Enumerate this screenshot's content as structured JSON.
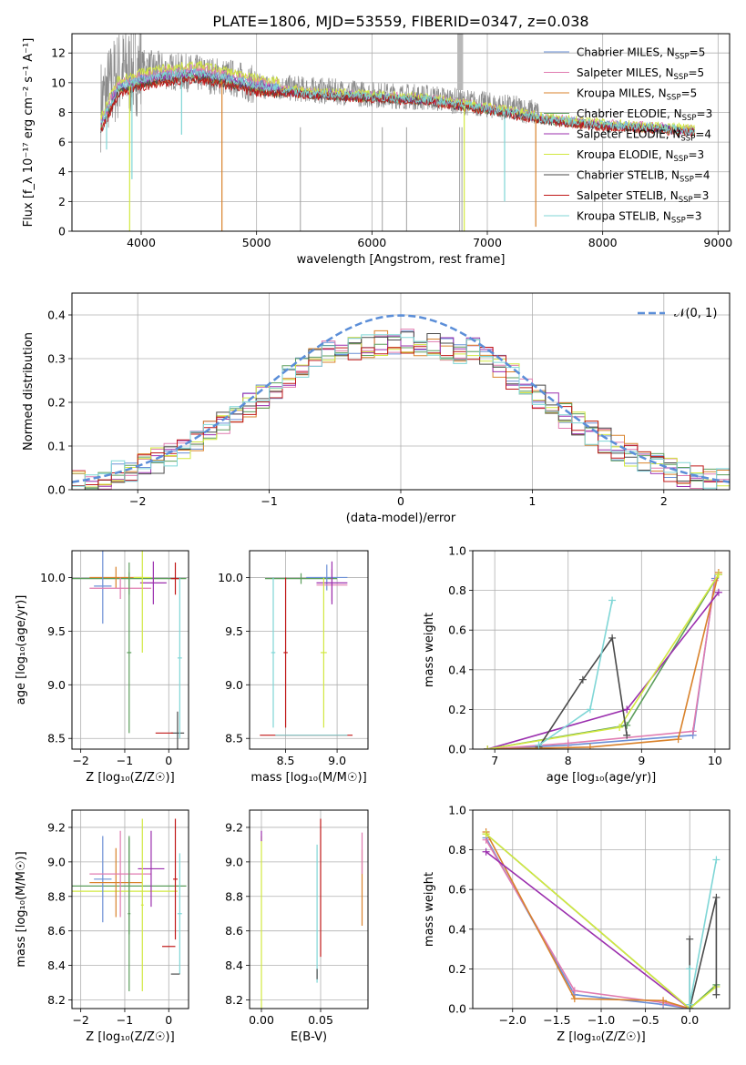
{
  "title": "PLATE=1806, MJD=53559, FIBERID=0347, z=0.038",
  "series": [
    {
      "name": "Chabrier MILES",
      "nssp": "5",
      "color": "#6a8fd6"
    },
    {
      "name": "Salpeter MILES",
      "nssp": "5",
      "color": "#e07bb0"
    },
    {
      "name": "Kroupa MILES",
      "nssp": "5",
      "color": "#d9822b"
    },
    {
      "name": "Chabrier ELODIE",
      "nssp": "3",
      "color": "#5c9e5c"
    },
    {
      "name": "Salpeter ELODIE",
      "nssp": "4",
      "color": "#9b2fae"
    },
    {
      "name": "Kroupa ELODIE",
      "nssp": "3",
      "color": "#d2e840"
    },
    {
      "name": "Chabrier STELIB",
      "nssp": "4",
      "color": "#4a4a4a"
    },
    {
      "name": "Salpeter STELIB",
      "nssp": "3",
      "color": "#c01818"
    },
    {
      "name": "Kroupa STELIB",
      "nssp": "3",
      "color": "#7fd6d6"
    }
  ],
  "chart_data": [
    {
      "id": "spectrum",
      "type": "line",
      "xlabel": "wavelength [Angstrom, rest frame]",
      "ylabel": "Flux [f_λ 10⁻¹⁷ erg cm⁻² s⁻¹ A⁻¹]",
      "xlim": [
        3400,
        9100
      ],
      "ylim": [
        0,
        13.3
      ],
      "xticks": [
        4000,
        5000,
        6000,
        7000,
        8000,
        9000
      ],
      "yticks": [
        0,
        2,
        4,
        6,
        8,
        10,
        12
      ],
      "data_curve": {
        "x": [
          3650,
          3800,
          4000,
          4200,
          4500,
          4800,
          5000,
          5500,
          6000,
          6500,
          7000,
          7300,
          7500,
          8000,
          8500,
          8800
        ],
        "y": [
          8.5,
          10.5,
          11.0,
          10.8,
          10.6,
          10.3,
          9.8,
          9.5,
          9.2,
          9.0,
          8.5,
          8.2,
          7.8,
          7.3,
          7.0,
          6.8
        ]
      },
      "model_curve": {
        "x": [
          3650,
          3800,
          4000,
          4200,
          4500,
          4800,
          5000,
          5500,
          6000,
          6500,
          7000,
          7300,
          7500,
          8000,
          8500,
          8800
        ],
        "y": [
          7.0,
          9.5,
          10.0,
          10.3,
          10.5,
          10.0,
          9.6,
          9.2,
          9.0,
          8.8,
          8.2,
          7.8,
          7.5,
          7.1,
          6.9,
          6.7
        ]
      },
      "data_end": 7450,
      "data_color": "#8a8a8a",
      "model_color": "#7fd6d6",
      "dip_lines": [
        {
          "x": 3900,
          "y": 0,
          "color": "#d2e840"
        },
        {
          "x": 4700,
          "y": 0,
          "color": "#d9822b"
        },
        {
          "x": 6800,
          "y": 0,
          "color": "#d2e840"
        },
        {
          "x": 7420,
          "y": 0.3,
          "color": "#d9822b"
        },
        {
          "x": 7150,
          "y": 2.0,
          "color": "#7fd6d6"
        },
        {
          "x": 3700,
          "y": 5.5,
          "color": "#7fd6d6"
        },
        {
          "x": 4350,
          "y": 6.5,
          "color": "#7fd6d6"
        },
        {
          "x": 3920,
          "y": 3.5,
          "color": "#7fd6d6"
        }
      ]
    },
    {
      "id": "residuals",
      "type": "histogram",
      "xlabel": "(data-model)/error",
      "ylabel": "Normed distribution",
      "xlim": [
        -2.5,
        2.5
      ],
      "ylim": [
        0,
        0.45
      ],
      "xticks": [
        -2,
        -1,
        0,
        1,
        2
      ],
      "yticks": [
        0.0,
        0.1,
        0.2,
        0.3,
        0.4
      ],
      "bin_width": 0.1,
      "gaussian_label": "𝒩(0, 1)",
      "gaussian_color": "#5b8ed8"
    },
    {
      "id": "age-vs-Z",
      "type": "errorbar",
      "xlabel": "Z [log₁₀(Z/Z☉)]",
      "ylabel": "age  [log₁₀(age/yr)]",
      "xlim": [
        -2.2,
        0.45
      ],
      "ylim": [
        8.4,
        10.25
      ],
      "xticks": [
        -2,
        -1,
        0
      ],
      "yticks": [
        8.5,
        9.0,
        9.5,
        10.0
      ],
      "points": [
        {
          "x": -0.9,
          "y": 9.99,
          "xerr": 1.3,
          "yerr": 0.15,
          "color": "#5c9e5c"
        },
        {
          "x": -1.2,
          "y": 10.0,
          "xerr": 0.6,
          "yerr": 0.1,
          "color": "#d9822b"
        },
        {
          "x": -1.5,
          "y": 9.92,
          "xerr": 0.2,
          "yerr": 0.35,
          "color": "#6a8fd6"
        },
        {
          "x": -1.1,
          "y": 9.9,
          "xerr": 0.7,
          "yerr": 0.1,
          "color": "#e07bb0"
        },
        {
          "x": -0.35,
          "y": 9.95,
          "xerr": 0.3,
          "yerr": 0.2,
          "color": "#9b2fae"
        },
        {
          "x": -0.6,
          "y": 10.0,
          "xerr": 0.2,
          "yerr": 0.7,
          "color": "#d2e840"
        },
        {
          "x": 0.15,
          "y": 9.99,
          "xerr": 0.1,
          "yerr": 0.15,
          "color": "#c01818"
        },
        {
          "x": 0.2,
          "y": 8.55,
          "xerr": 0.15,
          "yerr": 0.2,
          "color": "#4a4a4a"
        },
        {
          "x": -0.1,
          "y": 8.55,
          "xerr": 0.2,
          "yerr": 0.0,
          "color": "#c01818"
        },
        {
          "x": 0.25,
          "y": 9.25,
          "xerr": 0.05,
          "yerr": 0.75,
          "color": "#7fd6d6"
        },
        {
          "x": -0.9,
          "y": 9.3,
          "xerr": 0.05,
          "yerr": 0.75,
          "color": "#5c9e5c"
        }
      ]
    },
    {
      "id": "age-vs-mass",
      "type": "errorbar",
      "xlabel": "mass [log₁₀(M/M☉)]",
      "ylabel": "",
      "xlim": [
        8.15,
        9.3
      ],
      "ylim": [
        8.4,
        10.25
      ],
      "xticks": [
        8.5,
        9.0
      ],
      "yticks": [
        8.5,
        9.0,
        9.5,
        10.0
      ],
      "points": [
        {
          "x": 8.65,
          "y": 9.99,
          "xerr": 0.35,
          "yerr": 0.05,
          "color": "#5c9e5c"
        },
        {
          "x": 8.9,
          "y": 10.0,
          "xerr": 0.2,
          "yerr": 0.12,
          "color": "#6a8fd6"
        },
        {
          "x": 8.95,
          "y": 9.93,
          "xerr": 0.15,
          "yerr": 0.15,
          "color": "#e07bb0"
        },
        {
          "x": 8.95,
          "y": 9.95,
          "xerr": 0.15,
          "yerr": 0.2,
          "color": "#9b2fae"
        },
        {
          "x": 8.87,
          "y": 9.3,
          "xerr": 0.03,
          "yerr": 0.7,
          "color": "#d2e840"
        },
        {
          "x": 8.5,
          "y": 9.3,
          "xerr": 0.02,
          "yerr": 0.7,
          "color": "#c01818"
        },
        {
          "x": 8.38,
          "y": 9.3,
          "xerr": 0.02,
          "yerr": 0.7,
          "color": "#7fd6d6"
        },
        {
          "x": 8.7,
          "y": 8.53,
          "xerr": 0.45,
          "yerr": 0.0,
          "color": "#c01818"
        },
        {
          "x": 8.75,
          "y": 8.53,
          "xerr": 0.35,
          "yerr": 0.0,
          "color": "#7fd6d6"
        }
      ]
    },
    {
      "id": "weight-vs-age",
      "type": "line",
      "xlabel": "age  [log₁₀(age/yr)]",
      "ylabel": "mass weight",
      "xlim": [
        6.7,
        10.2
      ],
      "ylim": [
        0,
        1.0
      ],
      "xticks": [
        7,
        8,
        9,
        10
      ],
      "yticks": [
        0.0,
        0.2,
        0.4,
        0.6,
        0.8,
        1.0
      ],
      "series_lines": [
        {
          "color": "#6a8fd6",
          "x": [
            6.9,
            8.0,
            9.7,
            10.0
          ],
          "y": [
            0.0,
            0.02,
            0.07,
            0.86
          ]
        },
        {
          "color": "#e07bb0",
          "x": [
            6.9,
            8.0,
            9.7,
            10.0
          ],
          "y": [
            0.0,
            0.03,
            0.09,
            0.85
          ]
        },
        {
          "color": "#d9822b",
          "x": [
            6.9,
            8.3,
            9.5,
            10.05
          ],
          "y": [
            0.0,
            0.01,
            0.05,
            0.89
          ]
        },
        {
          "color": "#5c9e5c",
          "x": [
            6.9,
            8.8,
            10.05
          ],
          "y": [
            0.0,
            0.12,
            0.88
          ]
        },
        {
          "color": "#9b2fae",
          "x": [
            6.9,
            8.8,
            10.05
          ],
          "y": [
            0.0,
            0.2,
            0.79
          ]
        },
        {
          "color": "#d2e840",
          "x": [
            6.9,
            8.7,
            10.05
          ],
          "y": [
            0.0,
            0.11,
            0.88
          ]
        },
        {
          "color": "#4a4a4a",
          "x": [
            7.6,
            8.2,
            8.6,
            8.8
          ],
          "y": [
            0.01,
            0.35,
            0.56,
            0.07
          ]
        },
        {
          "color": "#7fd6d6",
          "x": [
            7.6,
            8.3,
            8.6
          ],
          "y": [
            0.02,
            0.2,
            0.75
          ]
        }
      ]
    },
    {
      "id": "mass-vs-Z",
      "type": "errorbar",
      "xlabel": "Z [log₁₀(Z/Z☉)]",
      "ylabel": "mass [log₁₀(M/M☉)]",
      "xlim": [
        -2.2,
        0.45
      ],
      "ylim": [
        8.15,
        9.3
      ],
      "xticks": [
        -2,
        -1,
        0
      ],
      "yticks": [
        8.2,
        8.4,
        8.6,
        8.8,
        9.0,
        9.2
      ],
      "points": [
        {
          "x": -0.9,
          "y": 8.86,
          "xerr": 1.3,
          "yerr": 0.28,
          "color": "#5c9e5c"
        },
        {
          "x": -1.0,
          "y": 8.83,
          "xerr": 1.2,
          "yerr": 0.0,
          "color": "#d2e840"
        },
        {
          "x": -1.5,
          "y": 8.9,
          "xerr": 0.2,
          "yerr": 0.25,
          "color": "#6a8fd6"
        },
        {
          "x": -1.2,
          "y": 8.88,
          "xerr": 0.6,
          "yerr": 0.2,
          "color": "#d9822b"
        },
        {
          "x": -1.1,
          "y": 8.93,
          "xerr": 0.7,
          "yerr": 0.25,
          "color": "#e07bb0"
        },
        {
          "x": -0.4,
          "y": 8.96,
          "xerr": 0.3,
          "yerr": 0.22,
          "color": "#9b2fae"
        },
        {
          "x": -0.6,
          "y": 8.75,
          "xerr": 0.03,
          "yerr": 0.5,
          "color": "#d2e840"
        },
        {
          "x": -0.9,
          "y": 8.7,
          "xerr": 0.03,
          "yerr": 0.45,
          "color": "#5c9e5c"
        },
        {
          "x": 0.15,
          "y": 8.9,
          "xerr": 0.05,
          "yerr": 0.35,
          "color": "#c01818"
        },
        {
          "x": 0.0,
          "y": 8.51,
          "xerr": 0.15,
          "yerr": 0.0,
          "color": "#c01818"
        },
        {
          "x": 0.25,
          "y": 8.7,
          "xerr": 0.05,
          "yerr": 0.35,
          "color": "#7fd6d6"
        },
        {
          "x": 0.15,
          "y": 8.35,
          "xerr": 0.1,
          "yerr": 0.0,
          "color": "#4a4a4a"
        }
      ]
    },
    {
      "id": "mass-vs-EBV",
      "type": "errorbar",
      "xlabel": "E(B-V)",
      "ylabel": "",
      "xlim": [
        -0.01,
        0.09
      ],
      "ylim": [
        8.15,
        9.3
      ],
      "xticks": [
        0.0,
        0.05
      ],
      "xtick_labels": [
        "0.00",
        "0.05"
      ],
      "yticks": [
        8.2,
        8.4,
        8.6,
        8.8,
        9.0,
        9.2
      ],
      "points": [
        {
          "x": 0.0,
          "y": 8.6,
          "xerr": 0,
          "yerr": 0.55,
          "color": "#d2e840"
        },
        {
          "x": 0.0,
          "y": 9.15,
          "xerr": 0,
          "yerr": 0.03,
          "color": "#9b2fae"
        },
        {
          "x": 0.047,
          "y": 8.7,
          "xerr": 0,
          "yerr": 0.4,
          "color": "#7fd6d6"
        },
        {
          "x": 0.047,
          "y": 8.35,
          "xerr": 0,
          "yerr": 0.03,
          "color": "#4a4a4a"
        },
        {
          "x": 0.05,
          "y": 8.85,
          "xerr": 0,
          "yerr": 0.4,
          "color": "#c01818"
        },
        {
          "x": 0.085,
          "y": 8.85,
          "xerr": 0,
          "yerr": 0.22,
          "color": "#d9822b"
        },
        {
          "x": 0.085,
          "y": 9.05,
          "xerr": 0,
          "yerr": 0.12,
          "color": "#e07bb0"
        }
      ]
    },
    {
      "id": "weight-vs-Z",
      "type": "line",
      "xlabel": "Z [log₁₀(Z/Z☉)]",
      "ylabel": "mass weight",
      "xlim": [
        -2.45,
        0.45
      ],
      "ylim": [
        0,
        1.0
      ],
      "xticks": [
        -2.0,
        -1.5,
        -1.0,
        -0.5,
        0.0
      ],
      "xtick_labels": [
        "−2.0",
        "−1.5",
        "−1.0",
        "−0.5",
        "0.0"
      ],
      "yticks": [
        0.0,
        0.2,
        0.4,
        0.6,
        0.8,
        1.0
      ],
      "series_lines": [
        {
          "color": "#6a8fd6",
          "x": [
            -2.3,
            -1.3,
            -0.3,
            0.0
          ],
          "y": [
            0.86,
            0.07,
            0.02,
            0.0
          ]
        },
        {
          "color": "#e07bb0",
          "x": [
            -2.3,
            -1.3,
            -0.3,
            0.0
          ],
          "y": [
            0.85,
            0.09,
            0.03,
            0.0
          ]
        },
        {
          "color": "#d9822b",
          "x": [
            -2.3,
            -1.3,
            -0.3,
            0.0
          ],
          "y": [
            0.89,
            0.05,
            0.04,
            0.0
          ]
        },
        {
          "color": "#5c9e5c",
          "x": [
            -2.3,
            0.0,
            0.3
          ],
          "y": [
            0.88,
            0.0,
            0.12
          ]
        },
        {
          "color": "#9b2fae",
          "x": [
            -2.3,
            0.0
          ],
          "y": [
            0.79,
            0.0
          ]
        },
        {
          "color": "#d2e840",
          "x": [
            -2.3,
            0.0,
            0.3
          ],
          "y": [
            0.88,
            0.0,
            0.11
          ]
        },
        {
          "color": "#4a4a4a",
          "x": [
            0.0,
            0.0,
            0.3,
            0.3
          ],
          "y": [
            0.35,
            0.0,
            0.56,
            0.07
          ]
        },
        {
          "color": "#7fd6d6",
          "x": [
            0.0,
            0.0,
            0.3
          ],
          "y": [
            0.2,
            0.02,
            0.75
          ]
        }
      ]
    }
  ]
}
